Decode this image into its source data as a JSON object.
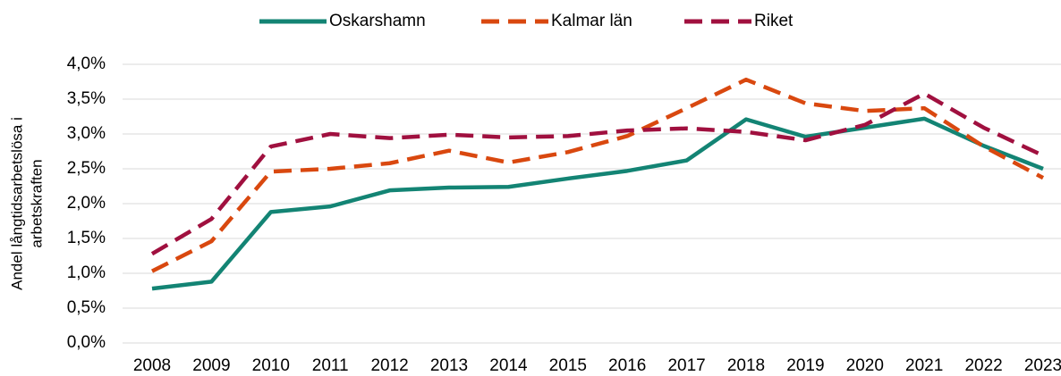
{
  "chart_data": {
    "type": "line",
    "ylabel": [
      "Andel långtidsarbetslösa i",
      "arbetskraften"
    ],
    "categories": [
      "2008",
      "2009",
      "2010",
      "2011",
      "2012",
      "2013",
      "2014",
      "2015",
      "2016",
      "2017",
      "2018",
      "2019",
      "2020",
      "2021",
      "2022",
      "2023"
    ],
    "series": [
      {
        "name": "Oskarshamn",
        "color": "#138474",
        "dashed": false,
        "values": [
          0.78,
          0.88,
          1.88,
          1.96,
          2.19,
          2.23,
          2.24,
          2.36,
          2.47,
          2.62,
          3.21,
          2.96,
          3.09,
          3.22,
          2.83,
          2.5
        ]
      },
      {
        "name": "Kalmar län",
        "color": "#d9480f",
        "dashed": true,
        "values": [
          1.03,
          1.46,
          2.46,
          2.5,
          2.58,
          2.76,
          2.59,
          2.74,
          2.97,
          3.37,
          3.78,
          3.44,
          3.33,
          3.37,
          2.82,
          2.37
        ]
      },
      {
        "name": "Riket",
        "color": "#a0103f",
        "dashed": true,
        "values": [
          1.28,
          1.78,
          2.82,
          3.0,
          2.94,
          2.99,
          2.95,
          2.97,
          3.05,
          3.08,
          3.03,
          2.91,
          3.13,
          3.58,
          3.09,
          2.69
        ]
      }
    ],
    "ylim": [
      0,
      4
    ],
    "yticks": [
      {
        "value": 0,
        "label": "0,0%"
      },
      {
        "value": 0.5,
        "label": "0,5%"
      },
      {
        "value": 1,
        "label": "1,0%"
      },
      {
        "value": 1.5,
        "label": "1,5%"
      },
      {
        "value": 2,
        "label": "2,0%"
      },
      {
        "value": 2.5,
        "label": "2,5%"
      },
      {
        "value": 3,
        "label": "3,0%"
      },
      {
        "value": 3.5,
        "label": "3,5%"
      },
      {
        "value": 4,
        "label": "4,0%"
      }
    ],
    "grid": true,
    "legend": "top"
  }
}
